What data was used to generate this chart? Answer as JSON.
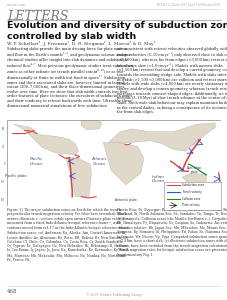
{
  "journal_tag": "nature.com",
  "date_line": "Vol 446 | 22 March 2007 | doi:10.1038/nature05615",
  "section": "LETTERS",
  "title": "Evolution and diversity of subduction zones\ncontrolled by slab width",
  "authors": "W. P. Schellart¹, J. Freeman¹, D. R. Stegman², L. Moresi³ & D. May³",
  "left_body": "Subducting slabs provide the main driving force for plate motion\nand flow in the Earth's mantle¹⁻³, and geodynamic seismic and geo-\nchemical studies offer insight into slab dynamics and subduction-\ninduced flow⁴⁻⁷. Most previous geodynamic studies treat subduction\nzones as either infinite (or trench-parallel extent⁸⁻¹⁰) or as two-\ndimensionally or finite in width but fixed in space¹¹. Subduction\nzones and their associated slabs are, however, limited in lateral\nextent (200–7,600 km), and their three-dimensional geometries\nevolve over time. Here we show that slab width controls two first-\norder features of plate tectonics: the curvature of subduction zones\nand their tendency to retreat backwards with time. Ultraslow three-\ndimensional numerical simulations of free subduction",
  "right_body": "are consistent with retreat velocities observed globally, with max-\nimum velocities (6–10 cm yr⁻¹) only observed close to slab edges\n(>3,500 km), whereas far from edges (<3,000 km) retreat velocities\nare always slow (<1.0 cm yr⁻¹). Models with narrow slabs\n(<1,500 km) retreat fast and develop a curved geometry, concave\ntowards the overriding wedge side. Models with slabs intermediate\nin width (>1,500 <3,000 km) are collision and retreat more slowly.\nModels with wide slabs (>4,000 km) are nearly stationary in the\ncentre and develop a convex geometry, whereas trench retreat\nincreases towards concave-shaped edges. Additionally, we identify\nperiods (3–10 Myr) of slow trench advance at the centre of wide\nslabs. Such wide-slab behaviour may explain mountain building\nin the central Andes, as being a consequence of its tectonic setting,\nfar from slab edges.",
  "cap_left": "Figure 1 | The major subduction zones on Earth for which the trench-\nperpendicular trench-migration velocity Vtr (blue bars extended). Black\narrows illustrate v ₁ vectors (while open arrows illustrate plate velocity v ₂)\nmeasured from a fixed Indo-Atlantic hotspot reference frame¹³, with\ncontours moved from ref. 17 in the Indo-Atlantic hotspot reference frame.\nSubduction zones: col, Andaman; Ka, Alaska; Am, Central American; Al,\nLesser Antilles; Az, Aleutians; Be, Betic; BR, Bolivia; Br, New Britain; Ch,\nCalabria; Cl, Chile; Co, Colombia; Co, Costa Rica; Cr, South Sandwich;\nCy, Cyprus; Ec, Galapagos; Ge, New Hebrides; Hi, Hikurangi; Il, Hellenic;\nIo, Izu-Bonin; Iy, Japan; Jo, Java; Ka, Kamchatka; Ko, Kermadec; Ky, Kuril;\nMa, Mariana; Mk, Makasaki; Mn, Molucca; Na, Nankai; No, Northland;\nPe, Perico; Ph,",
  "cap_right": "Puerto Rico; Po, Puysegur; Ri, Ryukyu; Sa, Sumatra; Sc, Scotia; Sh, South\nShetland; Si, North Solomon Sea; Sn, Sandalas; Tn, Tonga; Tr, Northwest;\nVr, Venezuela. Collision zones (the Manila-Izu-Bonin-v ₂): Carpathians;\nHt, Himalayas; Py, Hispaniola; Ur, Caspian; Sa, Indonesia. Arc retreat\nvelocities relative: Bh, Japan Sea; Mn, Mkasokos; Mo, Mount Sea; Mo,\nSumatra; By, Sumatra; Si, Philippines; Pd, Palau; So, Nanomia Sea; West\nIndonesia; Wr, Nicosy; Vg, Viga. Computed subduction zones spanning\n> 2.4 km: have a short slab, (y) illustrate subduction zones with slow\nretreat, have been excluded from the trench migration calculation in Fig. 2.\nTrench migration rates for hotspot subduction zones are presented in\nSupplementary Fig. 1.",
  "footnote": "© 2007 Nature Publishing Group",
  "page_number": "468",
  "bg_color": "#ffffff",
  "text_color": "#222222",
  "section_color": "#777777",
  "rule_color": "#aaaaaa",
  "map_bg": "#c8ddf0",
  "map_land": "#e0d8c8",
  "map_border": "#888888"
}
